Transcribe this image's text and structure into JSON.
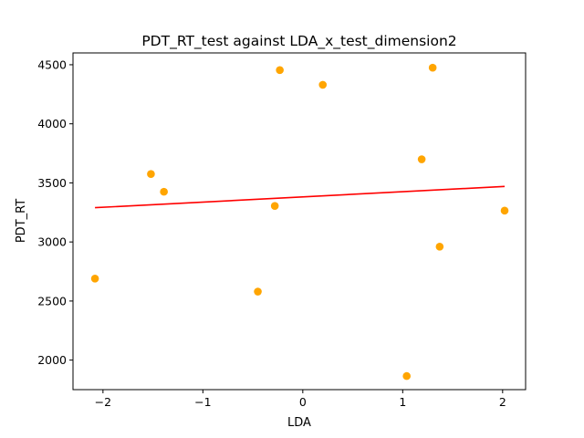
{
  "chart_data": {
    "type": "scatter",
    "title": "PDT_RT_test against LDA_x_test_dimension2",
    "xlabel": "LDA",
    "ylabel": "PDT_RT",
    "xlim": [
      -2.3,
      2.23
    ],
    "ylim": [
      1750,
      4600
    ],
    "xticks": [
      -2,
      -1,
      0,
      1,
      2
    ],
    "xtick_labels": [
      "−2",
      "−1",
      "0",
      "1",
      "2"
    ],
    "yticks": [
      2000,
      2500,
      3000,
      3500,
      4000,
      4500
    ],
    "ytick_labels": [
      "2000",
      "2500",
      "3000",
      "3500",
      "4000",
      "4500"
    ],
    "grid": false,
    "series": [
      {
        "kind": "points",
        "color": "#ffa500",
        "x": [
          -2.08,
          -1.52,
          -1.39,
          -0.45,
          -0.28,
          -0.23,
          0.2,
          1.04,
          1.19,
          1.3,
          1.37,
          2.02
        ],
        "y": [
          2690,
          3575,
          3425,
          2580,
          3305,
          4455,
          4330,
          1865,
          3700,
          4475,
          2960,
          3265
        ]
      },
      {
        "kind": "fit_line",
        "color": "#ff0000",
        "x": [
          -2.08,
          2.02
        ],
        "y": [
          3290,
          3470
        ]
      }
    ]
  }
}
